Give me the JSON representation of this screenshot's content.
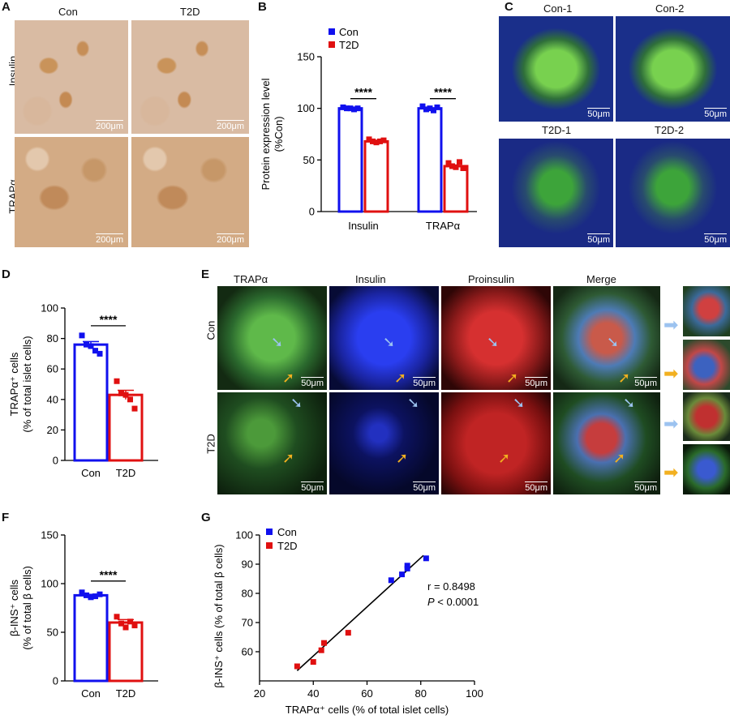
{
  "panels": {
    "A": {
      "letter": "A",
      "col_labels": [
        "Con",
        "T2D"
      ],
      "row_labels": [
        "Insulin",
        "TRAPα"
      ],
      "scale_labels": [
        "200μm",
        "200μm",
        "200μm",
        "200μm"
      ]
    },
    "B": {
      "letter": "B",
      "sig": [
        "****",
        "****"
      ]
    },
    "C": {
      "letter": "C",
      "titles": [
        "Con-1",
        "Con-2",
        "T2D-1",
        "T2D-2"
      ],
      "scale_labels": [
        "50μm",
        "50μm",
        "50μm",
        "50μm"
      ]
    },
    "D": {
      "letter": "D",
      "sig": "****"
    },
    "E": {
      "letter": "E",
      "col_labels": [
        "TRAPα",
        "Insulin",
        "Proinsulin",
        "Merge"
      ],
      "row_labels": [
        "Con",
        "T2D"
      ],
      "scale_label": "50μm"
    },
    "F": {
      "letter": "F",
      "sig": "****"
    },
    "G": {
      "letter": "G",
      "annotation_r": "r = 0.8498",
      "annotation_p_italic": "P",
      "annotation_p_rest": " < 0.0001"
    }
  },
  "colors": {
    "con": "#1010ee",
    "t2d": "#e01010"
  },
  "chart_data": [
    {
      "panel": "B",
      "type": "bar",
      "title": "",
      "categories": [
        "Insulin",
        "TRAPα"
      ],
      "ylabel": "Protein expression level\n(%Con)",
      "ylim": [
        0,
        150
      ],
      "yticks": [
        0,
        50,
        100,
        150
      ],
      "legend": [
        "Con",
        "T2D"
      ],
      "legend_position": "top-left",
      "series": [
        {
          "name": "Con",
          "values": [
            100,
            100
          ],
          "points": [
            [
              101,
              100,
              100,
              99,
              100
            ],
            [
              102,
              99,
              100,
              98,
              101
            ]
          ]
        },
        {
          "name": "T2D",
          "values": [
            68,
            44
          ],
          "points": [
            [
              70,
              68,
              67,
              68,
              69
            ],
            [
              47,
              44,
              43,
              48,
              42
            ]
          ]
        }
      ]
    },
    {
      "panel": "D",
      "type": "bar",
      "title": "",
      "categories": [
        "Con",
        "T2D"
      ],
      "ylabel": "TRAPα⁺ cells\n(% of total islet cells)",
      "ylim": [
        0,
        100
      ],
      "yticks": [
        0,
        20,
        40,
        60,
        80,
        100
      ],
      "values": [
        76,
        43
      ],
      "errors": [
        2,
        3
      ],
      "points": [
        [
          82,
          76,
          75,
          72,
          70
        ],
        [
          52,
          44,
          43,
          40,
          34
        ]
      ]
    },
    {
      "panel": "F",
      "type": "bar",
      "title": "",
      "categories": [
        "Con",
        "T2D"
      ],
      "ylabel": "β-INS⁺ cells\n(% of total β cells)",
      "ylim": [
        0,
        150
      ],
      "yticks": [
        0,
        50,
        100,
        150
      ],
      "values": [
        88,
        60
      ],
      "errors": [
        1,
        3
      ],
      "points": [
        [
          91,
          88,
          86,
          87,
          89
        ],
        [
          66,
          59,
          55,
          61,
          57
        ]
      ]
    },
    {
      "panel": "G",
      "type": "scatter",
      "title": "",
      "xlabel": "TRAPα⁺ cells (% of total islet cells)",
      "ylabel": "β-INS⁺ cells (% of total β cells)",
      "xlim": [
        20,
        100
      ],
      "ylim": [
        50,
        100
      ],
      "xticks": [
        20,
        40,
        60,
        80,
        100
      ],
      "yticks": [
        60,
        70,
        80,
        90,
        100
      ],
      "legend": [
        "Con",
        "T2D"
      ],
      "legend_position": "top-left",
      "series": [
        {
          "name": "Con",
          "x": [
            69,
            73,
            75,
            75,
            82
          ],
          "y": [
            84.5,
            86.5,
            88.5,
            89.5,
            92
          ]
        },
        {
          "name": "T2D",
          "x": [
            34,
            40,
            43,
            44,
            53
          ],
          "y": [
            55,
            56.5,
            60.5,
            63,
            66.5
          ]
        }
      ],
      "fit_line": {
        "x": [
          34,
          81
        ],
        "y": [
          53.5,
          93
        ]
      }
    }
  ]
}
